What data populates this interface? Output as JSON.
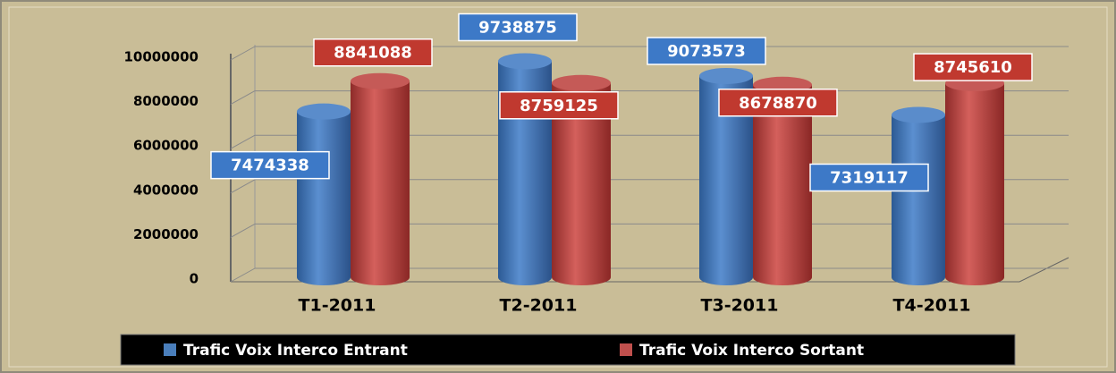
{
  "chart_data": {
    "type": "bar",
    "categories": [
      "T1-2011",
      "T2-2011",
      "T3-2011",
      "T4-2011"
    ],
    "series": [
      {
        "name": "Trafic Voix Interco Entrant",
        "color": "#4a7ebb",
        "values": [
          7474338,
          9738875,
          9073573,
          7319117
        ]
      },
      {
        "name": "Trafic Voix Interco Sortant",
        "color": "#c0504d",
        "values": [
          8841088,
          8759125,
          8678870,
          8745610
        ]
      }
    ],
    "ylim": [
      0,
      10000000
    ],
    "yticks": [
      0,
      2000000,
      4000000,
      6000000,
      8000000,
      10000000
    ],
    "grid": true,
    "legend": "bottom"
  }
}
